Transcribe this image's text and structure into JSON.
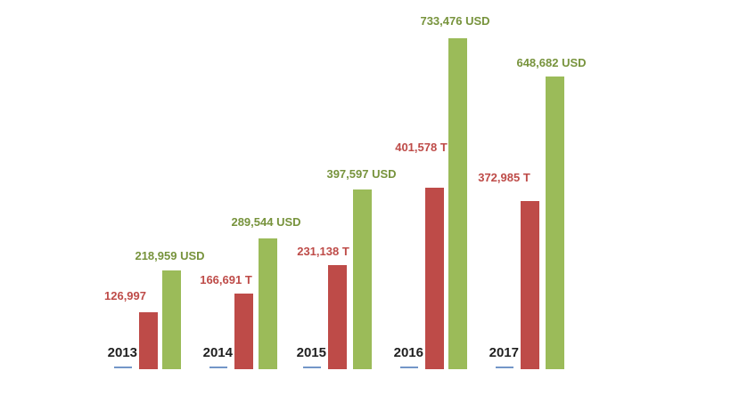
{
  "chart_data": {
    "type": "bar",
    "title": "",
    "xlabel": "",
    "ylabel": "",
    "categories": [
      "2013",
      "2014",
      "2015",
      "2016",
      "2017"
    ],
    "series": [
      {
        "name": "T",
        "unit": "T",
        "color": "#be4b48",
        "label_color": "#be4b48",
        "values": [
          126997,
          166691,
          231138,
          401578,
          372985
        ],
        "labels": [
          "126,997",
          "166,691 T",
          "231,138 T",
          "401,578 T",
          "372,985 T"
        ]
      },
      {
        "name": "USD",
        "unit": "USD",
        "color": "#9bbb59",
        "label_color": "#77933c",
        "values": [
          218959,
          289544,
          397597,
          733476,
          648682
        ],
        "labels": [
          "218,959 USD",
          "289,544 USD",
          "397,597 USD",
          "733,476 USD",
          "648,682 USD"
        ]
      }
    ],
    "ylim": [
      0,
      750000
    ],
    "grid": false,
    "legend_position": "none",
    "axes_visible": false,
    "background": "#ffffff",
    "year_label_color": "#1f1f1f",
    "year_underline_color": "#7396c8"
  }
}
